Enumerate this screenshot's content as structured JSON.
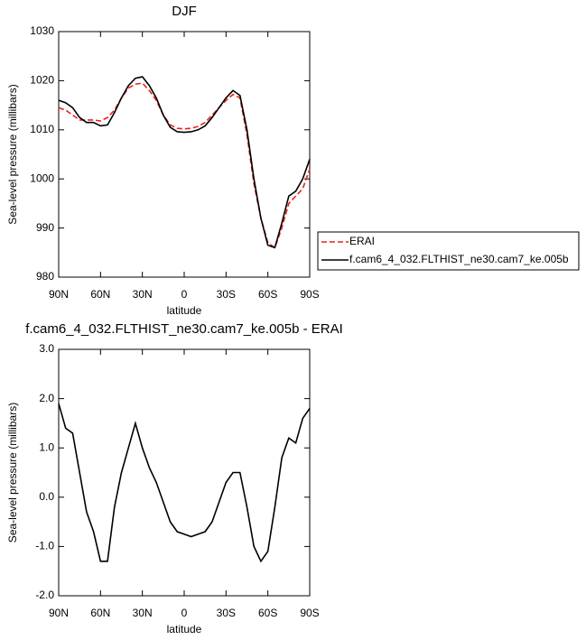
{
  "chart_data": [
    {
      "type": "line",
      "title": "DJF",
      "xlabel": "latitude",
      "ylabel": "Sea-level pressure (millibars)",
      "x": [
        90,
        85,
        80,
        75,
        70,
        65,
        60,
        55,
        50,
        45,
        40,
        35,
        30,
        25,
        20,
        15,
        10,
        5,
        0,
        -5,
        -10,
        -15,
        -20,
        -25,
        -30,
        -35,
        -40,
        -45,
        -50,
        -55,
        -60,
        -65,
        -70,
        -75,
        -80,
        -85,
        -90
      ],
      "xlim": [
        90,
        -90
      ],
      "xticks": [
        {
          "value": 90,
          "label": "90N"
        },
        {
          "value": 60,
          "label": "60N"
        },
        {
          "value": 30,
          "label": "30N"
        },
        0,
        {
          "value": -30,
          "label": "30S"
        },
        {
          "value": -60,
          "label": "60S"
        },
        {
          "value": -90,
          "label": "90S"
        }
      ],
      "ylim": [
        980,
        1030
      ],
      "yticks": [
        980,
        990,
        1000,
        1010,
        1020,
        1030
      ],
      "series": [
        {
          "name": "ERAI",
          "color": "#e8241c",
          "linestyle": "dashed",
          "values": [
            1014.5,
            1014,
            1013,
            1012,
            1012,
            1012,
            1011.8,
            1012.5,
            1014,
            1016.5,
            1018.5,
            1019.3,
            1019.5,
            1018,
            1016,
            1013,
            1011,
            1010.3,
            1010.2,
            1010.3,
            1010.7,
            1011.5,
            1013,
            1014.5,
            1016,
            1017.2,
            1016.5,
            1009,
            999,
            992,
            987,
            986,
            990,
            995,
            996.5,
            998,
            1002
          ]
        },
        {
          "name": "f.cam6_4_032.FLTHIST_ne30.cam7_ke.005b",
          "color": "#000000",
          "linestyle": "solid",
          "values": [
            1016,
            1015.5,
            1014.5,
            1012.5,
            1011.5,
            1011.5,
            1010.8,
            1011,
            1013.5,
            1016.5,
            1019,
            1020.5,
            1020.8,
            1019,
            1016.5,
            1013,
            1010.5,
            1009.6,
            1009.5,
            1009.6,
            1010,
            1010.8,
            1012.5,
            1014.5,
            1016.5,
            1018,
            1017,
            1010,
            1000,
            992,
            986.5,
            986,
            991,
            996.5,
            997.5,
            1000,
            1004
          ]
        }
      ]
    },
    {
      "type": "line",
      "title": "f.cam6_4_032.FLTHIST_ne30.cam7_ke.005b - ERAI",
      "xlabel": "latitude",
      "ylabel": "Sea-level pressure (millibars)",
      "x": [
        90,
        85,
        80,
        75,
        70,
        65,
        60,
        55,
        50,
        45,
        40,
        35,
        30,
        25,
        20,
        15,
        10,
        5,
        0,
        -5,
        -10,
        -15,
        -20,
        -25,
        -30,
        -35,
        -40,
        -45,
        -50,
        -55,
        -60,
        -65,
        -70,
        -75,
        -80,
        -85,
        -90
      ],
      "xlim": [
        90,
        -90
      ],
      "xticks": [
        {
          "value": 90,
          "label": "90N"
        },
        {
          "value": 60,
          "label": "60N"
        },
        {
          "value": 30,
          "label": "30N"
        },
        0,
        {
          "value": -30,
          "label": "30S"
        },
        {
          "value": -60,
          "label": "60S"
        },
        {
          "value": -90,
          "label": "90S"
        }
      ],
      "ylim": [
        -2,
        3
      ],
      "yticks": [
        {
          "value": -2,
          "label": "-2.0"
        },
        {
          "value": -1,
          "label": "-1.0"
        },
        {
          "value": 0,
          "label": "0.0"
        },
        {
          "value": 1,
          "label": "1.0"
        },
        {
          "value": 2,
          "label": "2.0"
        },
        {
          "value": 3,
          "label": "3.0"
        }
      ],
      "series": [
        {
          "color": "#000000",
          "linestyle": "solid",
          "values": [
            1.9,
            1.4,
            1.3,
            0.5,
            -0.3,
            -0.7,
            -1.3,
            -1.3,
            -0.2,
            0.5,
            1.0,
            1.5,
            1.0,
            0.6,
            0.3,
            -0.1,
            -0.5,
            -0.7,
            -0.75,
            -0.8,
            -0.75,
            -0.7,
            -0.5,
            -0.1,
            0.3,
            0.5,
            0.5,
            -0.2,
            -1.0,
            -1.3,
            -1.1,
            -0.2,
            0.8,
            1.2,
            1.1,
            1.6,
            1.8
          ]
        }
      ]
    }
  ]
}
